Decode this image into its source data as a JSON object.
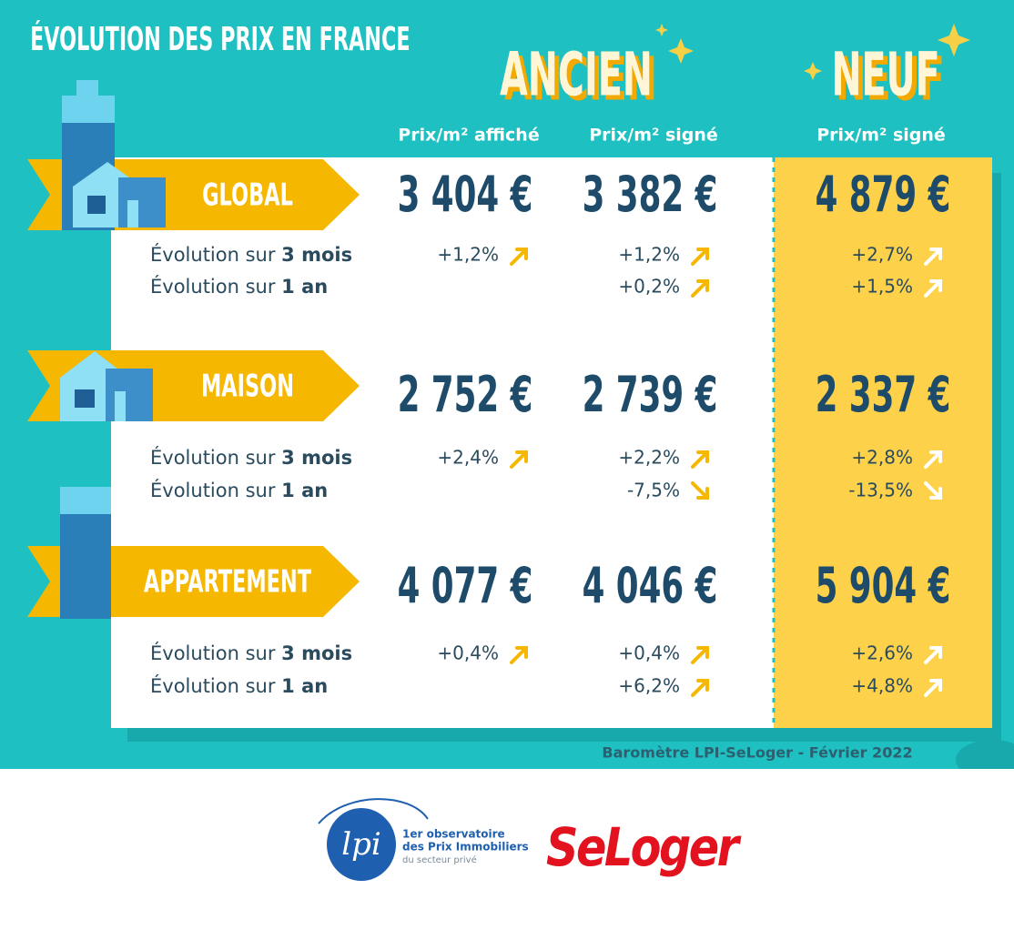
{
  "header": {
    "title": "ÉVOLUTION DES PRIX EN FRANCE",
    "ancien": "ANCIEN",
    "neuf": "NEUF"
  },
  "columns": [
    "Prix/m² affiché",
    "Prix/m² signé",
    "Prix/m² signé"
  ],
  "sections": [
    {
      "label": "GLOBAL",
      "prices": [
        "3 404 €",
        "3 382 €",
        "4 879 €"
      ],
      "rows": [
        {
          "label_prefix": "Évolution sur ",
          "label_bold": "3 mois",
          "values": [
            "+1,2%",
            "+1,2%",
            "+2,7%"
          ]
        },
        {
          "label_prefix": "Évolution sur ",
          "label_bold": "1 an",
          "values": [
            null,
            "+0,2%",
            "+1,5%"
          ]
        }
      ]
    },
    {
      "label": "MAISON",
      "prices": [
        "2 752 €",
        "2 739 €",
        "2 337 €"
      ],
      "rows": [
        {
          "label_prefix": "Évolution sur ",
          "label_bold": "3 mois",
          "values": [
            "+2,4%",
            "+2,2%",
            "+2,8%"
          ]
        },
        {
          "label_prefix": "Évolution sur ",
          "label_bold": "1 an",
          "values": [
            null,
            "-7,5%",
            "-13,5%"
          ]
        }
      ]
    },
    {
      "label": "APPARTEMENT",
      "prices": [
        "4 077 €",
        "4 046 €",
        "5 904 €"
      ],
      "rows": [
        {
          "label_prefix": "Évolution sur ",
          "label_bold": "3 mois",
          "values": [
            "+0,4%",
            "+0,4%",
            "+2,6%"
          ]
        },
        {
          "label_prefix": "Évolution sur ",
          "label_bold": "1 an",
          "values": [
            null,
            "+6,2%",
            "+4,8%"
          ]
        }
      ]
    }
  ],
  "footer": {
    "source": "Baromètre LPI-SeLoger - Février 2022",
    "lpi_logo": "lpi",
    "lpi_lines": [
      "1er observatoire",
      "des Prix Immobiliers",
      "du secteur privé"
    ],
    "seloger_logo": "SeLoger"
  }
}
